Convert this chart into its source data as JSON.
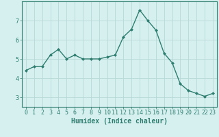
{
  "x": [
    0,
    1,
    2,
    3,
    4,
    5,
    6,
    7,
    8,
    9,
    10,
    11,
    12,
    13,
    14,
    15,
    16,
    17,
    18,
    19,
    20,
    21,
    22,
    23
  ],
  "y": [
    4.4,
    4.6,
    4.6,
    5.2,
    5.5,
    5.0,
    5.2,
    5.0,
    5.0,
    5.0,
    5.1,
    5.2,
    6.15,
    6.55,
    7.55,
    7.0,
    6.5,
    5.3,
    4.8,
    3.7,
    3.35,
    3.2,
    3.05,
    3.2
  ],
  "line_color": "#2e7d6e",
  "marker": "D",
  "marker_size": 2.0,
  "bg_color": "#d6f0f0",
  "grid_color": "#b8d8d8",
  "xlabel": "Humidex (Indice chaleur)",
  "xlim": [
    -0.5,
    23.5
  ],
  "ylim": [
    2.5,
    8.0
  ],
  "yticks": [
    3,
    4,
    5,
    6,
    7
  ],
  "xticks": [
    0,
    1,
    2,
    3,
    4,
    5,
    6,
    7,
    8,
    9,
    10,
    11,
    12,
    13,
    14,
    15,
    16,
    17,
    18,
    19,
    20,
    21,
    22,
    23
  ],
  "xlabel_fontsize": 7,
  "tick_fontsize": 6,
  "tick_color": "#2e7d6e",
  "spine_color": "#2e7d6e"
}
